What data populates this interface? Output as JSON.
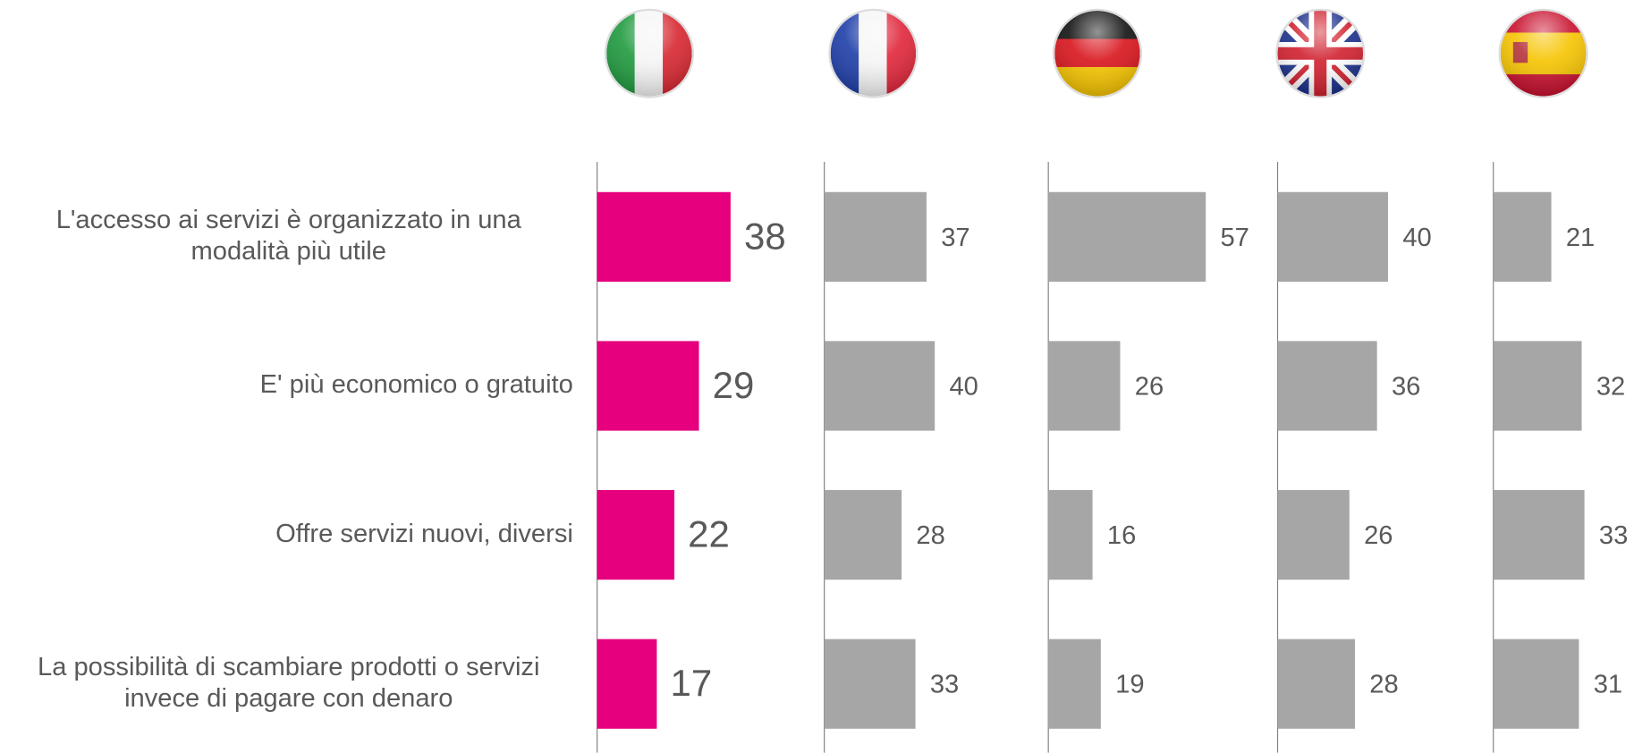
{
  "chart_data": {
    "type": "bar",
    "categories": [
      [
        "L'accesso ai servizi è organizzato in una",
        "modalità più utile"
      ],
      [
        "E' più economico o gratuito"
      ],
      [
        "Offre servizi nuovi, diversi"
      ],
      [
        "La possibilità di scambiare prodotti o servizi",
        "invece di pagare con denaro"
      ]
    ],
    "series": [
      {
        "color": "#e6007e",
        "values": [
          38,
          29,
          22,
          17
        ]
      },
      {
        "color": "#a6a6a6",
        "values": [
          37,
          40,
          28,
          33
        ]
      },
      {
        "color": "#a6a6a6",
        "values": [
          57,
          26,
          16,
          19
        ]
      },
      {
        "color": "#a6a6a6",
        "values": [
          40,
          36,
          26,
          28
        ]
      },
      {
        "color": "#a6a6a6",
        "values": [
          21,
          32,
          33,
          31
        ]
      }
    ]
  }
}
